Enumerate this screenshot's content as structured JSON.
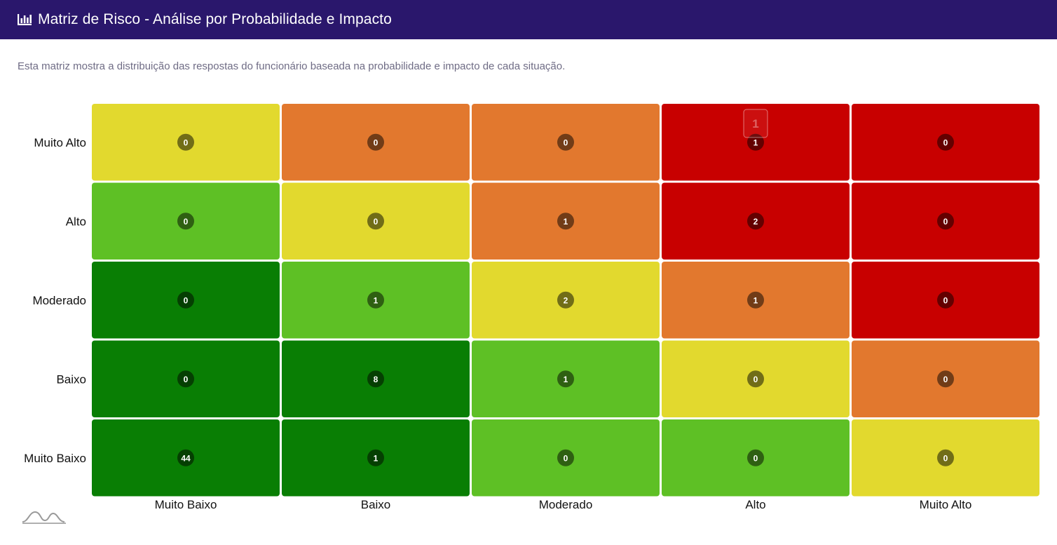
{
  "header": {
    "icon": "bar-chart-icon",
    "title": "Matriz de Risco - Análise por Probabilidade e Impacto",
    "background": "#2a176c"
  },
  "description": "Esta matriz mostra a distribuição das respostas do funcionário baseada na probabilidade e impacto de cada situação.",
  "chart_data": {
    "type": "heatmap",
    "title": "",
    "xlabel": "",
    "ylabel": "",
    "x_categories": [
      "Muito Baixo",
      "Baixo",
      "Moderado",
      "Alto",
      "Muito Alto"
    ],
    "y_categories": [
      "Muito Alto",
      "Alto",
      "Moderado",
      "Baixo",
      "Muito Baixo"
    ],
    "values": [
      [
        0,
        0,
        0,
        1,
        0
      ],
      [
        0,
        0,
        1,
        2,
        0
      ],
      [
        0,
        1,
        2,
        1,
        0
      ],
      [
        0,
        8,
        1,
        0,
        0
      ],
      [
        44,
        1,
        0,
        0,
        0
      ]
    ],
    "risk_levels": [
      [
        "medium",
        "high",
        "high",
        "critical",
        "critical"
      ],
      [
        "low",
        "medium",
        "high",
        "critical",
        "critical"
      ],
      [
        "very-low",
        "low",
        "medium",
        "high",
        "critical"
      ],
      [
        "very-low",
        "very-low",
        "low",
        "medium",
        "high"
      ],
      [
        "very-low",
        "very-low",
        "low",
        "low",
        "medium"
      ]
    ],
    "colors": {
      "very-low": "#097e04",
      "low": "#5ec025",
      "medium": "#e2d92e",
      "high": "#e2782e",
      "critical": "#c80000"
    },
    "badge_colors": {
      "very-low": "#053f02",
      "low": "#2f6012",
      "medium": "#716d17",
      "high": "#713c17",
      "critical": "#640000"
    },
    "highlight": {
      "row": 0,
      "col": 3,
      "label": "1"
    }
  },
  "footer": {
    "logo_icon": "wave-logo-icon"
  }
}
